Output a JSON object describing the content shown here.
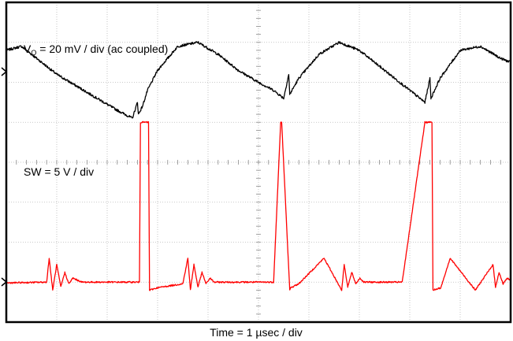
{
  "chart_data": {
    "type": "line",
    "title": "",
    "xlabel": "Time = 1 µsec / div",
    "ylabel": "",
    "grid": true,
    "divisions": {
      "x": 10,
      "y": 8
    },
    "x_unit": "µs",
    "xlim": [
      0,
      10
    ],
    "series": [
      {
        "name": "",
        "label_main": "V",
        "label_sub": "O",
        "label_rest": " = 20 mV / div (ac coupled)",
        "color": "#000000",
        "scale": "20 mV / div",
        "unit": "mV",
        "ylim": [
          -20,
          60
        ],
        "x": [
          0,
          0.3,
          0.6,
          1.0,
          1.4,
          1.8,
          2.2,
          2.5,
          2.6,
          2.62,
          2.7,
          2.8,
          3.0,
          3.4,
          3.8,
          4.2,
          4.6,
          5.0,
          5.3,
          5.5,
          5.6,
          5.62,
          5.8,
          6.2,
          6.6,
          7.0,
          7.4,
          7.8,
          8.1,
          8.3,
          8.4,
          8.42,
          8.6,
          9.0,
          9.4,
          9.8,
          10.0
        ],
        "y": [
          48,
          49,
          46,
          42,
          39,
          36,
          33,
          31,
          35,
          32,
          34,
          38,
          43,
          49,
          50,
          47,
          43,
          40,
          38,
          36,
          42,
          37,
          41,
          47,
          50,
          48,
          44,
          40,
          37,
          35,
          41,
          36,
          41,
          48,
          49,
          46,
          45
        ]
      },
      {
        "name": "",
        "label": "SW = 5 V / div",
        "color": "#ff0000",
        "scale": "5 V / div",
        "unit": "V",
        "ylim": [
          -5,
          35
        ],
        "x": [
          0,
          0.8,
          0.85,
          0.92,
          1.0,
          1.08,
          1.16,
          1.24,
          1.32,
          1.5,
          2.0,
          2.5,
          2.64,
          2.66,
          2.82,
          2.84,
          3.0,
          3.5,
          3.6,
          3.65,
          3.72,
          3.8,
          3.88,
          3.96,
          4.04,
          4.12,
          4.3,
          4.8,
          5.3,
          5.44,
          5.46,
          5.62,
          5.64,
          5.8,
          6.3,
          6.65,
          6.7,
          6.77,
          6.85,
          6.93,
          7.01,
          7.09,
          7.17,
          7.35,
          7.85,
          8.3,
          8.44,
          8.46,
          8.62,
          8.64,
          8.8,
          9.3,
          9.65,
          9.7,
          9.77,
          9.85,
          9.93,
          10.0
        ],
        "y": [
          -0.1,
          0,
          3,
          -1,
          2.2,
          -0.6,
          1.2,
          -0.2,
          0.5,
          0,
          0,
          0,
          0,
          20,
          20,
          -1,
          -0.7,
          -0.2,
          3,
          -1,
          2.2,
          -0.6,
          1.2,
          -0.2,
          0.5,
          0,
          0,
          0,
          0,
          20,
          20,
          -1,
          -0.7,
          -0.2,
          3,
          -1,
          2.2,
          -0.6,
          1.2,
          -0.2,
          0.5,
          0,
          0,
          0,
          0,
          20,
          20,
          -1,
          -0.7,
          -0.2,
          3,
          -1,
          2.2,
          -0.6,
          1.2,
          -0.2,
          0.5,
          0.2
        ]
      }
    ]
  }
}
